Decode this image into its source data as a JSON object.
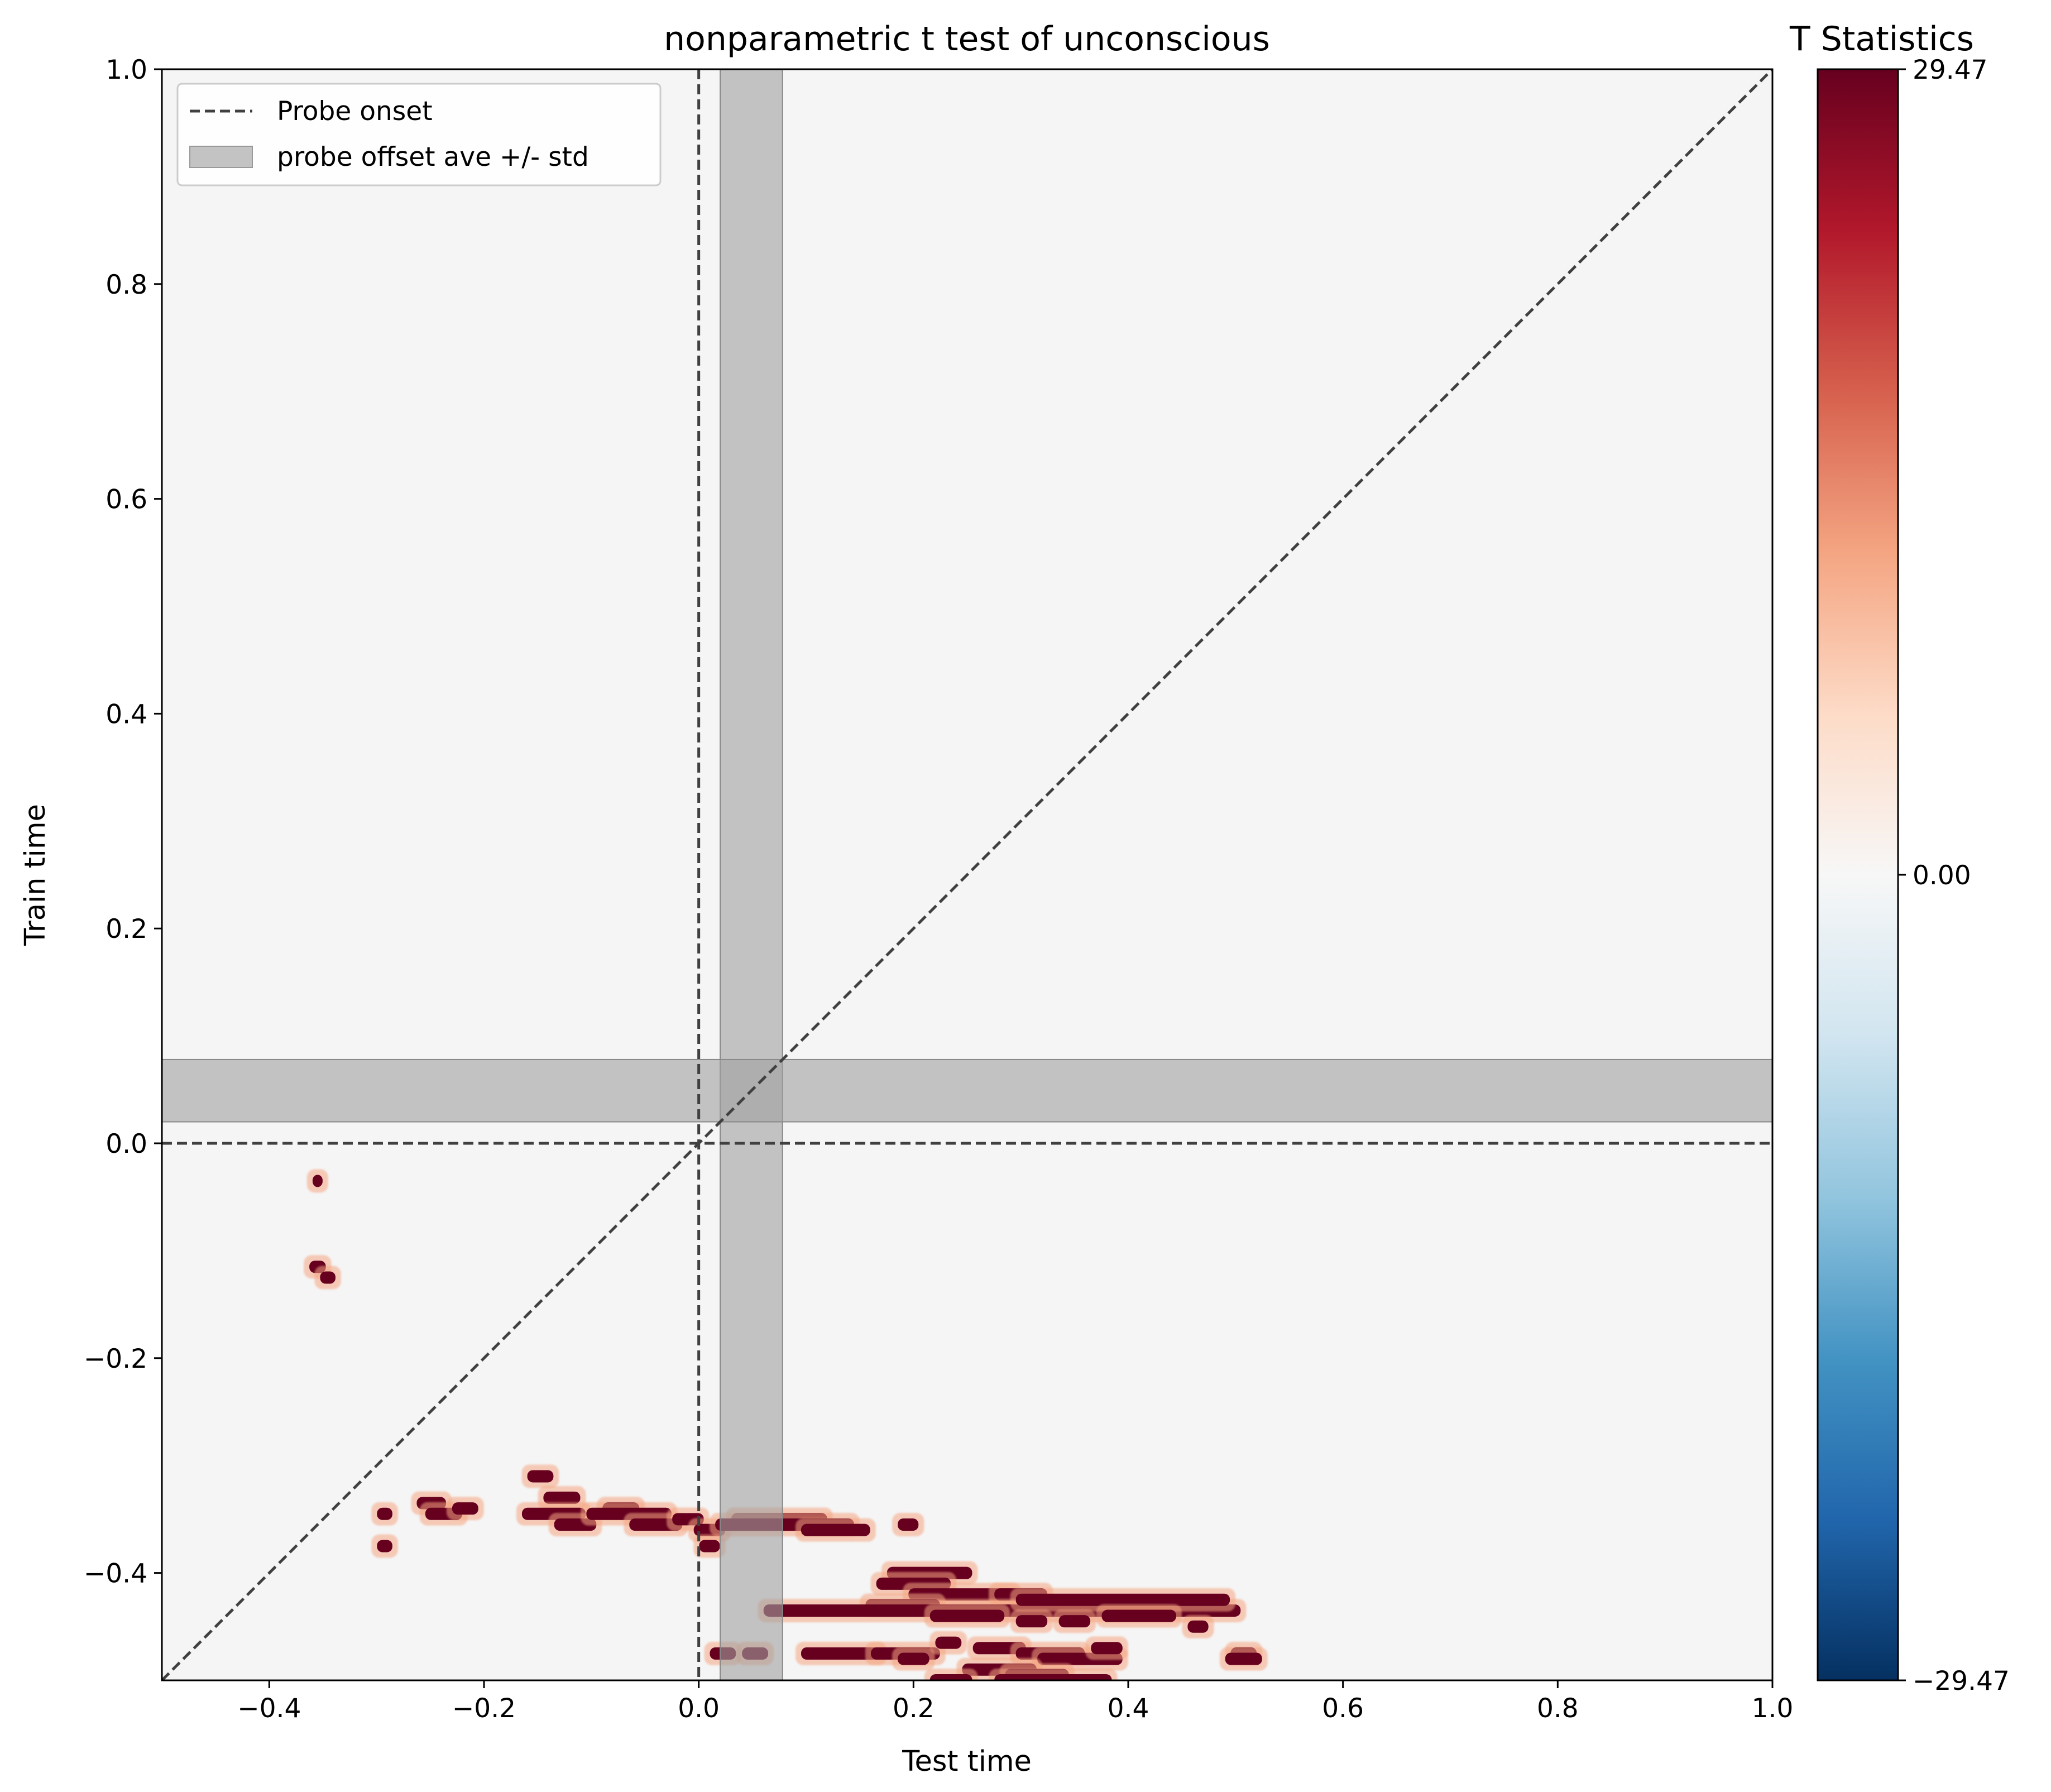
{
  "chart_data": {
    "type": "heatmap",
    "title": "nonparametric t test of unconscious",
    "xlabel": "Test time",
    "ylabel": "Train time",
    "xlim": [
      -0.5,
      1.0
    ],
    "ylim": [
      -0.5,
      1.0
    ],
    "x_ticks": [
      -0.4,
      -0.2,
      0.0,
      0.2,
      0.4,
      0.6,
      0.8,
      1.0
    ],
    "y_ticks": [
      -0.4,
      -0.2,
      0.0,
      0.2,
      0.4,
      0.6,
      0.8,
      1.0
    ],
    "x_tick_labels": [
      "−0.4",
      "−0.2",
      "0.0",
      "0.2",
      "0.4",
      "0.6",
      "0.8",
      "1.0"
    ],
    "y_tick_labels": [
      "−0.4",
      "−0.2",
      "0.0",
      "0.2",
      "0.4",
      "0.6",
      "0.8",
      "1.0"
    ],
    "grid": false,
    "background_color": "#f5f5f5",
    "colormap": "RdBu_r",
    "colorbar": {
      "title": "T Statistics",
      "min": -29.47,
      "max": 29.47,
      "ticks": [
        29.47,
        0.0,
        -29.47
      ],
      "tick_labels": [
        "29.47",
        "0.00",
        "−29.47"
      ],
      "placement": "right"
    },
    "probe_onset": {
      "x": 0.0,
      "y": 0.0,
      "style": "dashed",
      "color": "#404040"
    },
    "diagonal": {
      "from": [
        -0.5,
        -0.5
      ],
      "to": [
        1.0,
        1.0
      ],
      "style": "dashed",
      "color": "#404040"
    },
    "probe_offset_band": {
      "from": 0.02,
      "to": 0.078,
      "color": "#c3c3c3"
    },
    "legend": {
      "placement": "top-left",
      "entries": [
        {
          "label": "Probe onset",
          "kind": "dashed-line"
        },
        {
          "label": "probe offset ave +/- std",
          "kind": "patch"
        }
      ]
    },
    "significant_color": "#67001f",
    "significant_clusters": [
      {
        "train": -0.035,
        "test": [
          -0.355,
          -0.355
        ]
      },
      {
        "train": -0.115,
        "test": [
          -0.358,
          -0.352
        ]
      },
      {
        "train": -0.125,
        "test": [
          -0.348,
          -0.343
        ]
      },
      {
        "train": -0.345,
        "test": [
          -0.295,
          -0.29
        ]
      },
      {
        "train": -0.375,
        "test": [
          -0.295,
          -0.29
        ]
      },
      {
        "train": -0.335,
        "test": [
          -0.258,
          -0.24
        ]
      },
      {
        "train": -0.345,
        "test": [
          -0.25,
          -0.225
        ]
      },
      {
        "train": -0.34,
        "test": [
          -0.225,
          -0.21
        ]
      },
      {
        "train": -0.31,
        "test": [
          -0.155,
          -0.14
        ]
      },
      {
        "train": -0.33,
        "test": [
          -0.14,
          -0.115
        ]
      },
      {
        "train": -0.345,
        "test": [
          -0.16,
          -0.11
        ]
      },
      {
        "train": -0.355,
        "test": [
          -0.13,
          -0.1
        ]
      },
      {
        "train": -0.34,
        "test": [
          -0.085,
          -0.06
        ]
      },
      {
        "train": -0.345,
        "test": [
          -0.1,
          -0.03
        ]
      },
      {
        "train": -0.355,
        "test": [
          -0.06,
          -0.02
        ]
      },
      {
        "train": -0.35,
        "test": [
          -0.02,
          0.0
        ]
      },
      {
        "train": -0.36,
        "test": [
          0.0,
          0.02
        ]
      },
      {
        "train": -0.375,
        "test": [
          0.005,
          0.015
        ]
      },
      {
        "train": -0.35,
        "test": [
          0.035,
          0.115
        ]
      },
      {
        "train": -0.355,
        "test": [
          0.02,
          0.14
        ]
      },
      {
        "train": -0.36,
        "test": [
          0.1,
          0.155
        ]
      },
      {
        "train": -0.355,
        "test": [
          0.19,
          0.2
        ]
      },
      {
        "train": -0.4,
        "test": [
          0.18,
          0.25
        ]
      },
      {
        "train": -0.41,
        "test": [
          0.17,
          0.23
        ]
      },
      {
        "train": -0.42,
        "test": [
          0.2,
          0.29
        ]
      },
      {
        "train": -0.42,
        "test": [
          0.28,
          0.32
        ]
      },
      {
        "train": -0.43,
        "test": [
          0.16,
          0.22
        ]
      },
      {
        "train": -0.435,
        "test": [
          0.065,
          0.5
        ]
      },
      {
        "train": -0.425,
        "test": [
          0.3,
          0.49
        ]
      },
      {
        "train": -0.44,
        "test": [
          0.22,
          0.28
        ]
      },
      {
        "train": -0.445,
        "test": [
          0.3,
          0.32
        ]
      },
      {
        "train": -0.445,
        "test": [
          0.34,
          0.36
        ]
      },
      {
        "train": -0.44,
        "test": [
          0.38,
          0.44
        ]
      },
      {
        "train": -0.45,
        "test": [
          0.46,
          0.47
        ]
      },
      {
        "train": -0.475,
        "test": [
          0.015,
          0.03
        ]
      },
      {
        "train": -0.475,
        "test": [
          0.045,
          0.06
        ]
      },
      {
        "train": -0.475,
        "test": [
          0.1,
          0.165
        ]
      },
      {
        "train": -0.475,
        "test": [
          0.165,
          0.22
        ]
      },
      {
        "train": -0.48,
        "test": [
          0.19,
          0.21
        ]
      },
      {
        "train": -0.47,
        "test": [
          0.26,
          0.3
        ]
      },
      {
        "train": -0.475,
        "test": [
          0.3,
          0.355
        ]
      },
      {
        "train": -0.48,
        "test": [
          0.32,
          0.39
        ]
      },
      {
        "train": -0.47,
        "test": [
          0.37,
          0.39
        ]
      },
      {
        "train": -0.49,
        "test": [
          0.25,
          0.31
        ]
      },
      {
        "train": -0.495,
        "test": [
          0.29,
          0.34
        ]
      },
      {
        "train": -0.5,
        "test": [
          0.22,
          0.25
        ]
      },
      {
        "train": -0.5,
        "test": [
          0.28,
          0.38
        ]
      },
      {
        "train": -0.465,
        "test": [
          0.225,
          0.24
        ]
      },
      {
        "train": -0.475,
        "test": [
          0.5,
          0.515
        ]
      },
      {
        "train": -0.48,
        "test": [
          0.495,
          0.52
        ]
      }
    ]
  }
}
